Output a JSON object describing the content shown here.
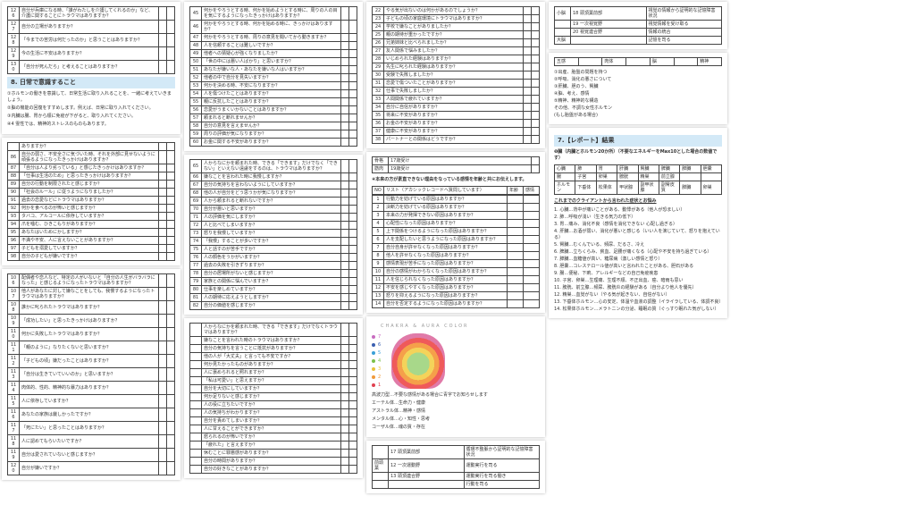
{
  "pages": [
    {
      "id": "p1",
      "rows": [
        [
          "126",
          "自分が兵庫になる時、「誰がわたしを介護してくれるのか」など、介護に関することにトラウマはありますか？"
        ],
        [
          "127",
          "自分の立場がありますか？"
        ],
        [
          "128",
          "「今までの苦労は何だったのか」と思うことはありますか？"
        ],
        [
          "129",
          "今の生活に不安はありますか？"
        ],
        [
          "130",
          "「自分が死んだら」と考えることはありますか？"
        ]
      ],
      "heading": "8. 日常で意識すること",
      "paras": [
        "①ホルモンの働きを意識して、日常生活に取り入れることを、一緒に考えていきましょう。",
        "②脳の機能の回復をすすめします。例えば、日常に取り入れてください。",
        "③内臓は腸、胃から順に免疫が下がると、取り入れてください。",
        "④4 霊性では、精神的ストレスのものもあります。"
      ]
    },
    {
      "id": "p2",
      "rows": [
        [
          "",
          "ありますか？"
        ],
        [
          "86",
          "自分の弱さ、不安全さに気づいた時、それを外部に見せないように頑張るようになったきっかけはありますか？"
        ],
        [
          "87",
          "「自分は人より劣っている」と感じたきっかけはありますか？"
        ],
        [
          "88",
          "「仕事は生活のため」と思ったきっかけはありますか？"
        ],
        [
          "89",
          "自分の行動を制限されたと感じますか？"
        ],
        [
          "90",
          "「社会のルール」に従うようになりましたか？"
        ],
        [
          "91",
          "過去の恋愛などにトラウマはありますか？"
        ],
        [
          "92",
          "何かを食べるのが怖いと感じますか？"
        ],
        [
          "93",
          "タバコ、アルコールに依存していますか？"
        ],
        [
          "94",
          "爪を噛む、ひきこもりがありますか？"
        ],
        [
          "95",
          "あなたはいためにかしますか？"
        ],
        [
          "96",
          "不満や不安、人に言えないことがありますか？"
        ],
        [
          "97",
          "子どもを溺愛していますか？"
        ],
        [
          "98",
          "自分の子どもが嫌いですか？"
        ]
      ]
    },
    {
      "id": "p3",
      "rows": [
        [
          "106",
          "配偶者や恋人など、特定の人がいないと「自分の人生がバラバラになった」と感じるようになったトラウマはありますか？"
        ],
        [
          "107",
          "他人があなたに対して嫌なことをしても、我慢するようになったトラウマはありますか？"
        ],
        [
          "108",
          "誰かに叱られたトラウマはありますか？"
        ],
        [
          "109",
          "「成功したい」と思ったきっかけはありますか？"
        ],
        [
          "110",
          "何かに失敗したトラウマはありますか？"
        ],
        [
          "111",
          "「親のように」なりたくないと思いますか？"
        ],
        [
          "112",
          "「子どもの頃」嫌だったことはありますか？"
        ],
        [
          "113",
          "「自分は生きていていいのか」と思いますか？"
        ],
        [
          "114",
          "肉体的、性的、精神的な暴力はありますか？"
        ],
        [
          "115",
          "人に依存していますか？"
        ],
        [
          "116",
          "あなたの家族は厳しかったですか？"
        ],
        [
          "117",
          "「死にたい」と思ったことはありますか？"
        ],
        [
          "118",
          "人に認めてもらいたいですか？"
        ],
        [
          "119",
          "自分は愛されていないと感じますか？"
        ],
        [
          "120",
          "自分が嫌いですか？"
        ]
      ]
    },
    {
      "id": "p4",
      "rows": [
        [
          "45",
          "何かをやろうとする時、何かを始めようとする時に、周りの人の目を気にするようになったきっかけはありますか？"
        ],
        [
          "46",
          "何かをやろうとする時、何かを始める時に、きっかけはありますか？"
        ],
        [
          "47",
          "何かをやろうとする時、周りの意見を聞いてから動きますか？"
        ],
        [
          "48",
          "人を信頼することは難しいですか？"
        ],
        [
          "49",
          "他者への猜疑心が強くなりましたか？"
        ],
        [
          "50",
          "「世の中には悪い人ばかり」と思いますか？"
        ],
        [
          "51",
          "あなたが嫌いな人・あなたを嫌いな人はいますか？"
        ],
        [
          "52",
          "他者の中で自分を見失いますか？"
        ],
        [
          "53",
          "何かを決める時、不安になりますか？"
        ],
        [
          "54",
          "人を傷つけたことはありますか？"
        ],
        [
          "55",
          "親に反抗したことはありますか？"
        ],
        [
          "56",
          "恋愛がうまくいかないことはありますか？"
        ],
        [
          "57",
          "頼まれると断れませんか？"
        ],
        [
          "58",
          "自分の意見を言えませんか？"
        ],
        [
          "59",
          "周りの評価が気になりますか？"
        ],
        [
          "60",
          "お金に関する不安がありますか？"
        ]
      ]
    },
    {
      "id": "p5",
      "rows": [
        [
          "65",
          "人からなにかを頼まれた時、できる「できます」だけでなく「できない」といえない遠慮をするのは、トラウマはありますか？"
        ],
        [
          "66",
          "嫌なことを言われた時に我慢しますか？"
        ],
        [
          "67",
          "自分の気持ちを言わないようにしていますか？"
        ],
        [
          "68",
          "他の人が自分をどう思うかが気になりますか？"
        ],
        [
          "69",
          "人から頼まれると断れないですか？"
        ],
        [
          "70",
          "自分が悪いと思いますか？"
        ],
        [
          "71",
          "人の評価を気にしますか？"
        ],
        [
          "72",
          "人と比べてしまいますか？"
        ],
        [
          "73",
          "怒りを我慢していますか？"
        ],
        [
          "74",
          "「我慢」することが多いですか？"
        ],
        [
          "75",
          "人と話すのが苦手ですか？"
        ],
        [
          "76",
          "人の顔色をうかがいますか？"
        ],
        [
          "77",
          "過去の失敗を引きずりますか？"
        ],
        [
          "78",
          "自分の居場所がないと感じますか？"
        ],
        [
          "79",
          "家族との関係に悩んでいますか？"
        ],
        [
          "80",
          "仕事を楽しめていますか？"
        ],
        [
          "81",
          "人の期待に応えようとしますか？"
        ],
        [
          "82",
          "自分の価値を感じますか？"
        ]
      ]
    },
    {
      "id": "p6",
      "rows": [
        [
          "",
          "人からなにかを頼まれた時、できる「できます」だけでなくトラウマはありますか？"
        ],
        [
          "",
          "嫌なことを言われた時のトラウマはありますか？"
        ],
        [
          "",
          "自分の気持ちを言うことに抵抗がありますか？"
        ],
        [
          "",
          "他の人が「大丈夫」と言っても不安ですか？"
        ],
        [
          "",
          "何か見たかったものがありますか？"
        ],
        [
          "",
          "人に褒められると照れますか？"
        ],
        [
          "",
          "「私は可愛い」と思えますか？"
        ],
        [
          "",
          "自分を大切にしていますか？"
        ],
        [
          "",
          "何か足りないと感じますか？"
        ],
        [
          "",
          "人の役に立ちたいですか？"
        ],
        [
          "",
          "人の気持ちがわかりますか？"
        ],
        [
          "",
          "自分を責めてしまいますか？"
        ],
        [
          "",
          "人に甘えることができますか？"
        ],
        [
          "",
          "怒られるのが怖いですか？"
        ],
        [
          "",
          "「疲れた」と言えますか？"
        ],
        [
          "",
          "休むことに罪悪感がありますか？"
        ],
        [
          "",
          "自分の時間がありますか？"
        ],
        [
          "",
          "自分の好きなことがありますか？"
        ]
      ]
    },
    {
      "id": "p7",
      "rows": [
        [
          "22",
          "やる気が出ないのは何かがあるのでしょうか？"
        ],
        [
          "23",
          "子どもの頃の家庭環境にトラウマはありますか？"
        ],
        [
          "24",
          "学校で嫌なことがありましたか？"
        ],
        [
          "25",
          "親の期待が重かったですか？"
        ],
        [
          "26",
          "兄弟姉妹と比べられましたか？"
        ],
        [
          "27",
          "友人関係で悩みましたか？"
        ],
        [
          "28",
          "いじめられた経験はありますか？"
        ],
        [
          "29",
          "先生に叱られた経験はありますか？"
        ],
        [
          "30",
          "受験で失敗しましたか？"
        ],
        [
          "31",
          "恋愛で傷ついたことがありますか？"
        ],
        [
          "32",
          "仕事で失敗しましたか？"
        ],
        [
          "33",
          "人間関係で疲れていますか？"
        ],
        [
          "34",
          "自分に自信がありますか？"
        ],
        [
          "35",
          "将来に不安がありますか？"
        ],
        [
          "36",
          "お金の不安がありますか？"
        ],
        [
          "37",
          "健康に不安がありますか？"
        ],
        [
          "38",
          "パートナーとの関係はどうですか？"
        ]
      ]
    },
    {
      "id": "p8",
      "top": [
        [
          "骨格",
          "17歳受け"
        ],
        [
          "筋肉",
          "19歳受け"
        ]
      ],
      "intro": "④本来の方が素直できない理由をなっている感情を年齢と共にお伝えします。",
      "head": [
        "NO",
        "リスト（アカシックレコードへ質問しています）",
        "年齢",
        "感情"
      ],
      "rows": [
        [
          "1",
          "行動力を妨げている原因はありますか？"
        ],
        [
          "2",
          "決断力を妨げている原因はありますか？"
        ],
        [
          "3",
          "本来の力が発揮できない原因はありますか？"
        ],
        [
          "4",
          "心配性になった原因はありますか？"
        ],
        [
          "5",
          "上下関係をつけるようになった原因はありますか？"
        ],
        [
          "6",
          "人を支配したいと思うようになった原因はありますか？"
        ],
        [
          "7",
          "自分自身が許せなくなった原因はありますか？"
        ],
        [
          "8",
          "他人を許せなくなった原因はありますか？"
        ],
        [
          "9",
          "感情表現が苦手になった原因はありますか？"
        ],
        [
          "10",
          "自分の感情がわからなくなった原因はありますか？"
        ],
        [
          "11",
          "人を信じられなくなった原因はありますか？"
        ],
        [
          "12",
          "不安を感じやすくなった原因はありますか？"
        ],
        [
          "13",
          "怒りを抑えるようになった原因はありますか？"
        ],
        [
          "14",
          "自分を否定するようになった原因はありますか？"
        ]
      ]
    },
    {
      "id": "pc",
      "title": "CHAKRA & AURA COLOR",
      "chakras": [
        {
          "n": "7",
          "color": "#c86cc0"
        },
        {
          "n": "6",
          "color": "#3a5fb0"
        },
        {
          "n": "5",
          "color": "#3aa0d8"
        },
        {
          "n": "4",
          "color": "#7cc04a"
        },
        {
          "n": "3",
          "color": "#e8c23a"
        },
        {
          "n": "2",
          "color": "#f09a3a"
        },
        {
          "n": "1",
          "color": "#e04050"
        }
      ],
      "lines": [
        "高波刀型…不要な感情がある場合に青字でお知らせします",
        "エーテル体…生命力・健康",
        "アストラル体…精神・感情",
        "メンタル体…心・知性・思考",
        "コーザル体…魂の質・存在"
      ]
    },
    {
      "id": "pr1",
      "rows": [
        [
          "",
          "17  頭頂葉前部",
          "循環不整脈から証明的な記憶障害状況"
        ],
        [
          "前頭葉",
          "12  一次運動野",
          "運動実行を司る"
        ],
        [
          "",
          "13  頭頂連合野",
          "運動実行を司る働き"
        ],
        [
          "",
          "",
          "行動を司る"
        ]
      ]
    },
    {
      "id": "pr2",
      "rows": [
        [
          "小脳",
          "18  頭頂葉前部",
          "視覚の情報から証明的な記憶障害状況"
        ],
        [
          "",
          "19  一次視覚野",
          "視覚情報を受け取る"
        ],
        [
          "",
          "20  視覚連合野",
          "情報の統合"
        ],
        [
          "大脳",
          "",
          "記憶を司る"
        ]
      ]
    },
    {
      "id": "pr3",
      "grid": [
        [
          "五感",
          "",
          "肉体",
          "",
          "脳",
          "",
          "精神"
        ]
      ],
      "items": [
        "①出産、胎盤の問題を持つ",
        "②呼吸、消化の悪さについて",
        "③肝臓、胆のう、腎臓",
        "④脳、考え、感情",
        "⑤精神、精神的な構造",
        "その他、不調な女性ホルモン",
        "(もし胎盤がある場合)"
      ]
    },
    {
      "id": "pr4",
      "heading": "7.【レポート】結果",
      "sub": "❶臓（内臓とホルモン20か所）（不要なエネルギーをMax10とした場合の数値です）",
      "grid": [
        [
          "心臓",
          "肺",
          "胃",
          "肝臓",
          "腎臓",
          "脾臓",
          "膵臓",
          "胆嚢"
        ],
        [
          "腸",
          "子宮",
          "卵巣",
          "膀胱",
          "精巣",
          "前立腺",
          "",
          ""
        ],
        [
          "ホルモン",
          "下垂体",
          "松果体",
          "甲状腺",
          "副甲状腺",
          "副腎皮質",
          "膵臓",
          "卵巣"
        ]
      ],
      "note": "これまでのクライアントから言われた症状とお悩み",
      "items": [
        "1. 心臓…背中が痛いことがある、動悸がある（他人が恐ましい）",
        "2. 肺…呼吸が浅い（生きる気力の低下）",
        "3. 胃…痛み、消化不良（感情を消化できない 心配し過ぎる）",
        "4. 肝臓…お酒が弱い、消化が悪いと感じる（いい人を演じていて、怒りを抱えている）",
        "5. 腎臓…むくんでいる、頻尿、だるさ、冷え",
        "6. 脾臓…立ちくらみ、貧血、足腰が痛くなる（心配や不安を持ち過ぎている）",
        "7. 膵臓…血糖値が高い、糖尿病（激しい感情と怒り）",
        "8. 胆嚢…コレステロール値が高いと言われたことがある、胆石がある",
        "9. 腸…便秘、下痢、アレルギーなどの自己免疫疾患",
        "10. 子宮、卵巣…生理痛、生理不順、不正出血、癌、暗雨も思い",
        "11. 膀胱、前立腺…頻尿、膀胱炎の経験がある（自分より他人を優先）",
        "12. 精巣…血覚がない（やる気が起きない、自信がない）",
        "13. 下垂体ホルモン…心の安定、体温や血液の調整（イライラしている、体調不良）",
        "14. 松果体ホルモン…メラトニンの分泌、睡眠の質（ぐっすり眠れた気がしない）"
      ]
    }
  ]
}
